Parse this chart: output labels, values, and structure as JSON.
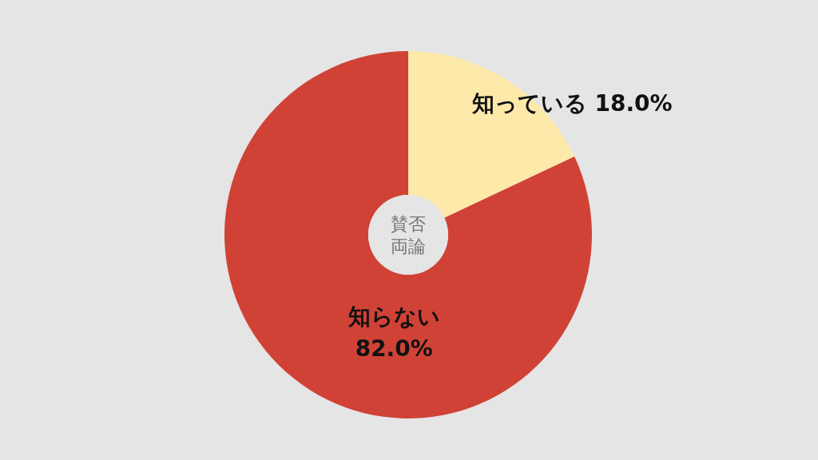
{
  "chart_data": {
    "type": "donut",
    "title": "賛否両論",
    "categories": [
      "知っている",
      "知らない"
    ],
    "values": [
      18,
      82
    ],
    "colors": [
      "#fde9a9",
      "#d04236"
    ],
    "value_labels": [
      "18.0%",
      "82.0%"
    ]
  }
}
